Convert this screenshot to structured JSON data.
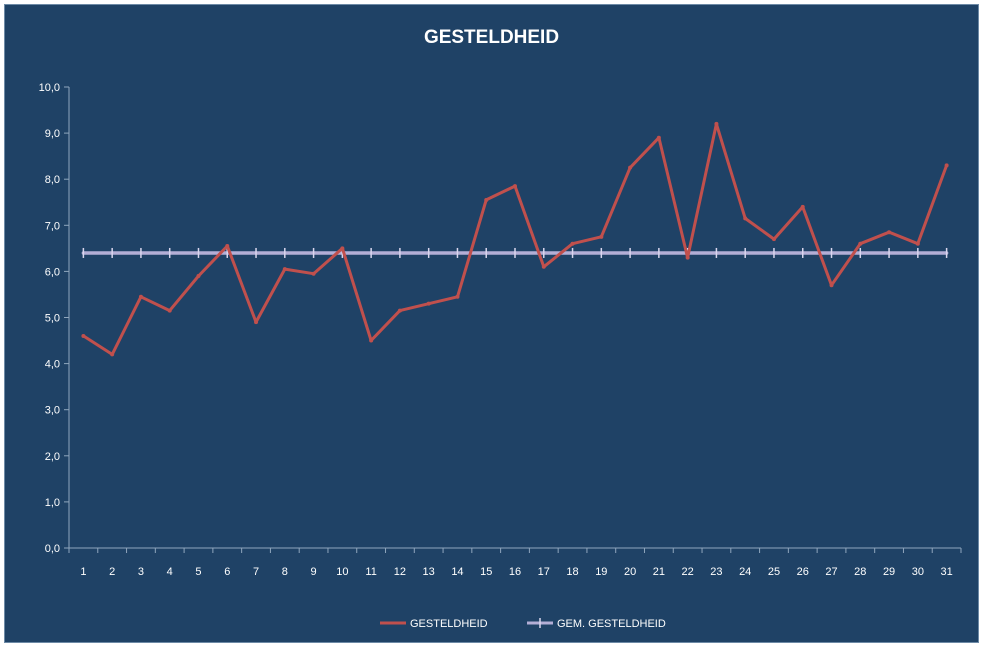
{
  "chart_data": {
    "type": "line",
    "title": "GESTELDHEID",
    "xlabel": "",
    "ylabel": "",
    "categories": [
      "1",
      "2",
      "3",
      "4",
      "5",
      "6",
      "7",
      "8",
      "9",
      "10",
      "11",
      "12",
      "13",
      "14",
      "15",
      "16",
      "17",
      "18",
      "19",
      "20",
      "21",
      "22",
      "23",
      "24",
      "25",
      "26",
      "27",
      "28",
      "29",
      "30",
      "31"
    ],
    "yticks": [
      "0,0",
      "1,0",
      "2,0",
      "3,0",
      "4,0",
      "5,0",
      "6,0",
      "7,0",
      "8,0",
      "9,0",
      "10,0"
    ],
    "ylim": [
      0,
      10
    ],
    "grid": false,
    "legend_position": "bottom",
    "series": [
      {
        "name": "GESTELDHEID",
        "color": "#c0504d",
        "values": [
          4.6,
          4.2,
          5.45,
          5.15,
          5.9,
          6.55,
          4.9,
          6.05,
          5.95,
          6.5,
          4.5,
          5.15,
          5.3,
          5.45,
          7.55,
          7.85,
          6.1,
          6.6,
          6.75,
          8.25,
          8.9,
          6.3,
          9.2,
          7.15,
          6.7,
          7.4,
          5.7,
          6.6,
          6.85,
          6.6,
          8.3
        ]
      },
      {
        "name": "GEM. GESTELDHEID",
        "color": "#b3aed6",
        "values": [
          6.4,
          6.4,
          6.4,
          6.4,
          6.4,
          6.4,
          6.4,
          6.4,
          6.4,
          6.4,
          6.4,
          6.4,
          6.4,
          6.4,
          6.4,
          6.4,
          6.4,
          6.4,
          6.4,
          6.4,
          6.4,
          6.4,
          6.4,
          6.4,
          6.4,
          6.4,
          6.4,
          6.4,
          6.4,
          6.4,
          6.4
        ]
      }
    ]
  }
}
